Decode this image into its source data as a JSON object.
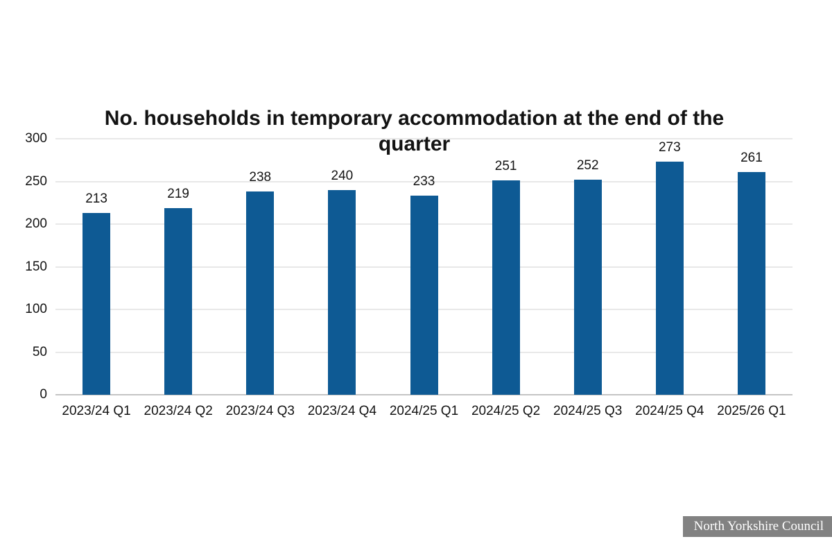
{
  "chart_data": {
    "type": "bar",
    "title": "No. households in temporary accommodation at the end of the quarter",
    "categories": [
      "2023/24 Q1",
      "2023/24 Q2",
      "2023/24 Q3",
      "2023/24 Q4",
      "2024/25 Q1",
      "2024/25 Q2",
      "2024/25 Q3",
      "2024/25 Q4",
      "2025/26 Q1"
    ],
    "values": [
      213,
      219,
      238,
      240,
      233,
      251,
      252,
      273,
      261
    ],
    "xlabel": "",
    "ylabel": "",
    "ylim": [
      0,
      300
    ],
    "ytick_step": 50,
    "ytick_labels": [
      "0",
      "50",
      "100",
      "150",
      "200",
      "250",
      "300"
    ],
    "grid": true,
    "legend": "none",
    "value_labels_shown": true,
    "bar_color": "#0e5a94",
    "gridline_color": "#e8e8e8",
    "baseline_color": "#c4c4c4",
    "title_color": "#131313",
    "label_color": "#131313"
  },
  "footer": {
    "badge": "North Yorkshire Council",
    "badge_bg": "#828282",
    "badge_text_color": "#ffffff"
  }
}
